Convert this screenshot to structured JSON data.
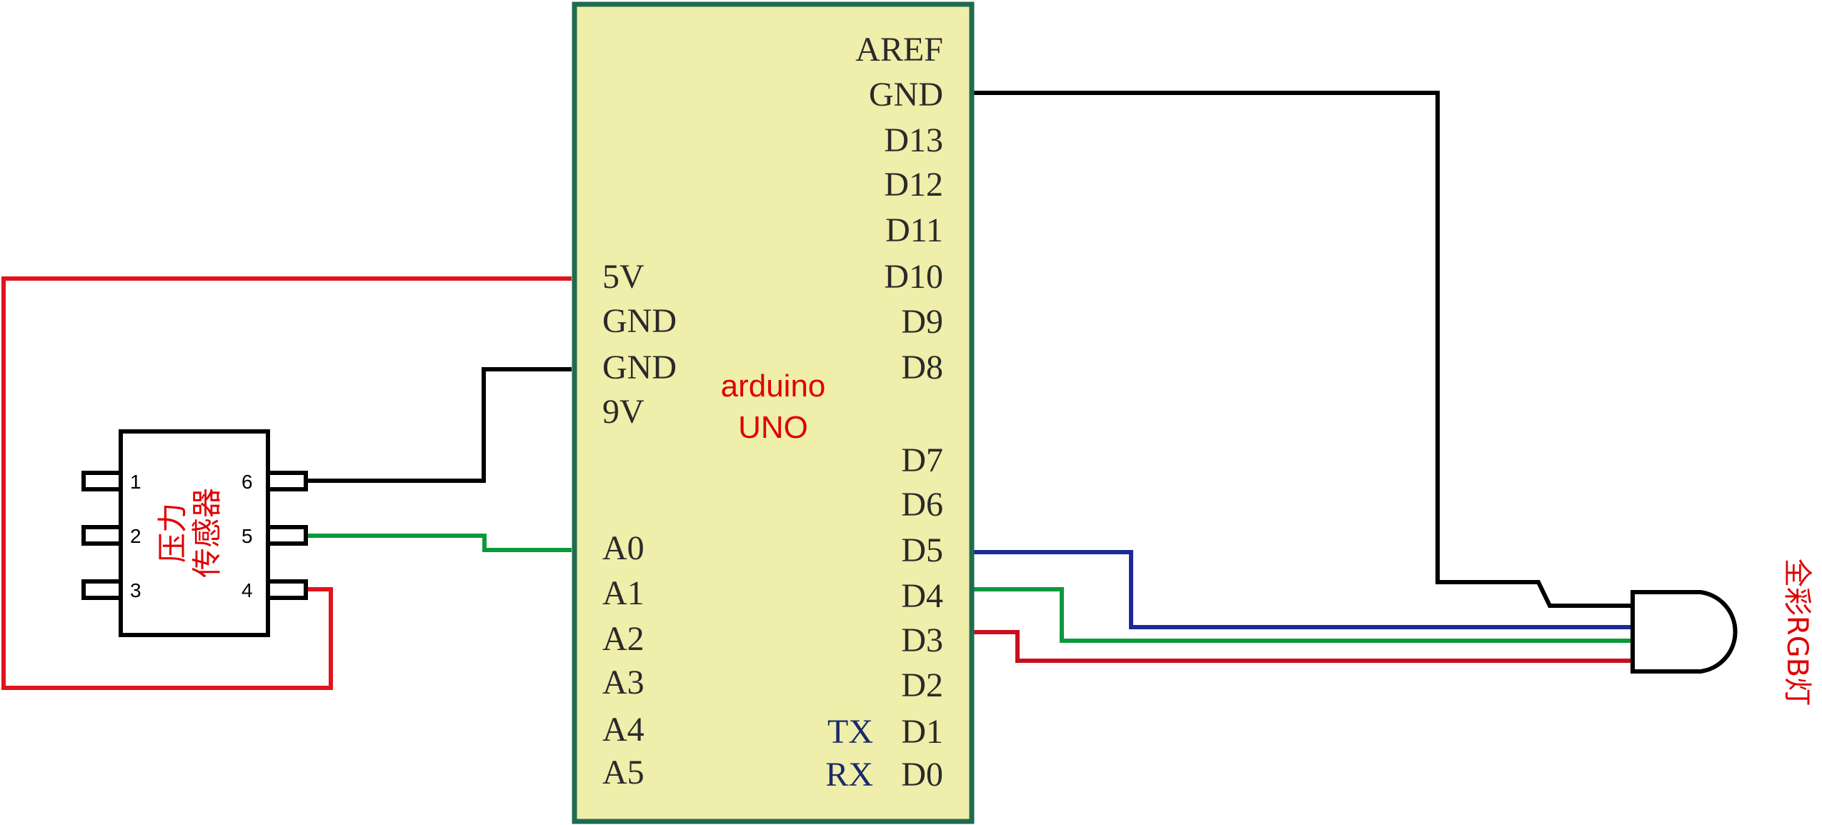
{
  "board": {
    "name_line1": "arduino",
    "name_line2": "UNO",
    "fill_color": "#efeeaa",
    "border_color": "#1f6b50",
    "left_pins": [
      "5V",
      "GND",
      "GND",
      "9V",
      "A0",
      "A1",
      "A2",
      "A3",
      "A4",
      "A5"
    ],
    "right_pins": [
      "AREF",
      "GND",
      "D13",
      "D12",
      "D11",
      "D10",
      "D9",
      "D8",
      "D7",
      "D6",
      "D5",
      "D4",
      "D3",
      "D2",
      "D1",
      "D0"
    ],
    "serial_labels": [
      "TX",
      "RX"
    ]
  },
  "sensor": {
    "name_line1": "压力",
    "name_line2": "传感器",
    "pins_left": [
      "1",
      "2",
      "3"
    ],
    "pins_right": [
      "6",
      "5",
      "4"
    ]
  },
  "led": {
    "name": "全彩RGB灯"
  },
  "wire_colors": {
    "power": "#e0141e",
    "ground": "#000000",
    "signal_green": "#0a9a3c",
    "signal_blue": "#1c2a96",
    "signal_red": "#c8101e"
  }
}
